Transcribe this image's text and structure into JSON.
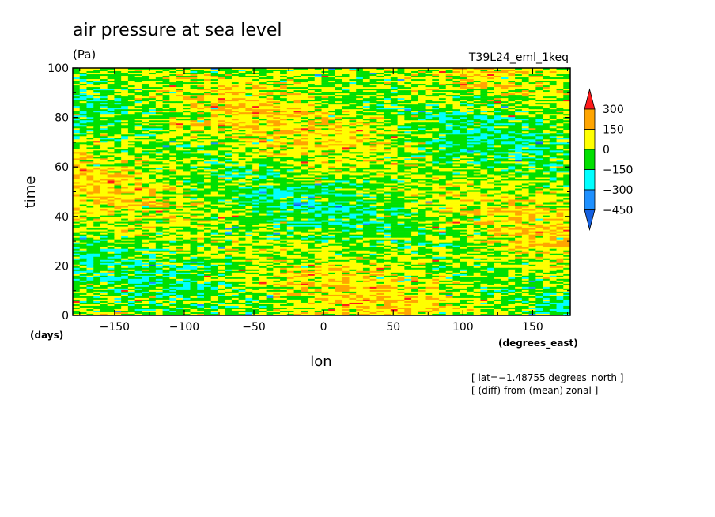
{
  "chart_data": {
    "type": "heatmap",
    "title": "air pressure at sea level",
    "units": "(Pa)",
    "run_label": "T39L24_eml_1keq",
    "xlabel": "lon",
    "xunit": "(degrees_east)",
    "ylabel": "time",
    "yunit": "(days)",
    "xlim": [
      -180,
      177
    ],
    "ylim": [
      0,
      100
    ],
    "xticks": [
      -150,
      -100,
      -50,
      0,
      50,
      100,
      150
    ],
    "yticks": [
      0,
      20,
      40,
      60,
      80,
      100
    ],
    "xtick_labels": [
      "−150",
      "−100",
      "−50",
      "0",
      "50",
      "100",
      "150"
    ],
    "ytick_labels": [
      "0",
      "20",
      "40",
      "60",
      "80",
      "100"
    ],
    "colorbar": {
      "levels": [
        300,
        150,
        0,
        -150,
        -300,
        -450
      ],
      "labels": [
        "300",
        "150",
        "0",
        "−150",
        "−300",
        "−450"
      ],
      "colors": [
        "#ff1a1a",
        "#ffa500",
        "#ffff00",
        "#00e000",
        "#00ffff",
        "#1e90ff",
        "#1560e0"
      ]
    },
    "notes": [
      "[ lat=−1.48755 degrees_north ]",
      "[ (diff) from (mean) zonal ]"
    ],
    "field": {
      "description_rows": 200,
      "dominant_values": "mostly between −150 and 150 Pa, with sparse extremes"
    }
  }
}
